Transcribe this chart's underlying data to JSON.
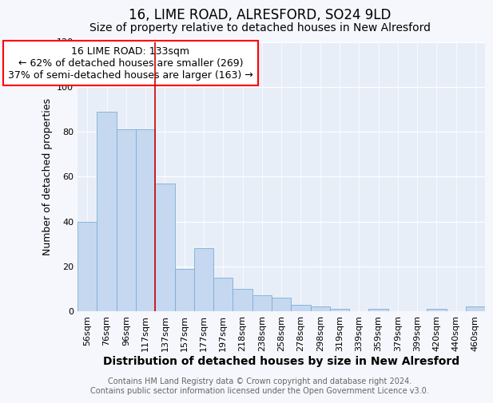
{
  "title1": "16, LIME ROAD, ALRESFORD, SO24 9LD",
  "title2": "Size of property relative to detached houses in New Alresford",
  "xlabel": "Distribution of detached houses by size in New Alresford",
  "ylabel": "Number of detached properties",
  "categories": [
    "56sqm",
    "76sqm",
    "96sqm",
    "117sqm",
    "137sqm",
    "157sqm",
    "177sqm",
    "197sqm",
    "218sqm",
    "238sqm",
    "258sqm",
    "278sqm",
    "298sqm",
    "319sqm",
    "339sqm",
    "359sqm",
    "379sqm",
    "399sqm",
    "420sqm",
    "440sqm",
    "460sqm"
  ],
  "values": [
    40,
    89,
    81,
    81,
    57,
    19,
    28,
    15,
    10,
    7,
    6,
    3,
    2,
    1,
    0,
    1,
    0,
    0,
    1,
    0,
    2
  ],
  "bar_color": "#c5d8f0",
  "bar_edge_color": "#7aafd4",
  "fig_bg": "#f5f7fc",
  "ax_bg": "#e8eef8",
  "annotation_line1": "16 LIME ROAD: 133sqm",
  "annotation_line2": "← 62% of detached houses are smaller (269)",
  "annotation_line3": "37% of semi-detached houses are larger (163) →",
  "vline_color": "#cc0000",
  "vline_x": 3.5,
  "ylim": [
    0,
    120
  ],
  "yticks": [
    0,
    20,
    40,
    60,
    80,
    100,
    120
  ],
  "title1_fontsize": 12,
  "title2_fontsize": 10,
  "xlabel_fontsize": 10,
  "ylabel_fontsize": 9,
  "tick_fontsize": 8,
  "annotation_fontsize": 9,
  "footer_fontsize": 7,
  "footer_text": "Contains HM Land Registry data © Crown copyright and database right 2024.\nContains public sector information licensed under the Open Government Licence v3.0."
}
